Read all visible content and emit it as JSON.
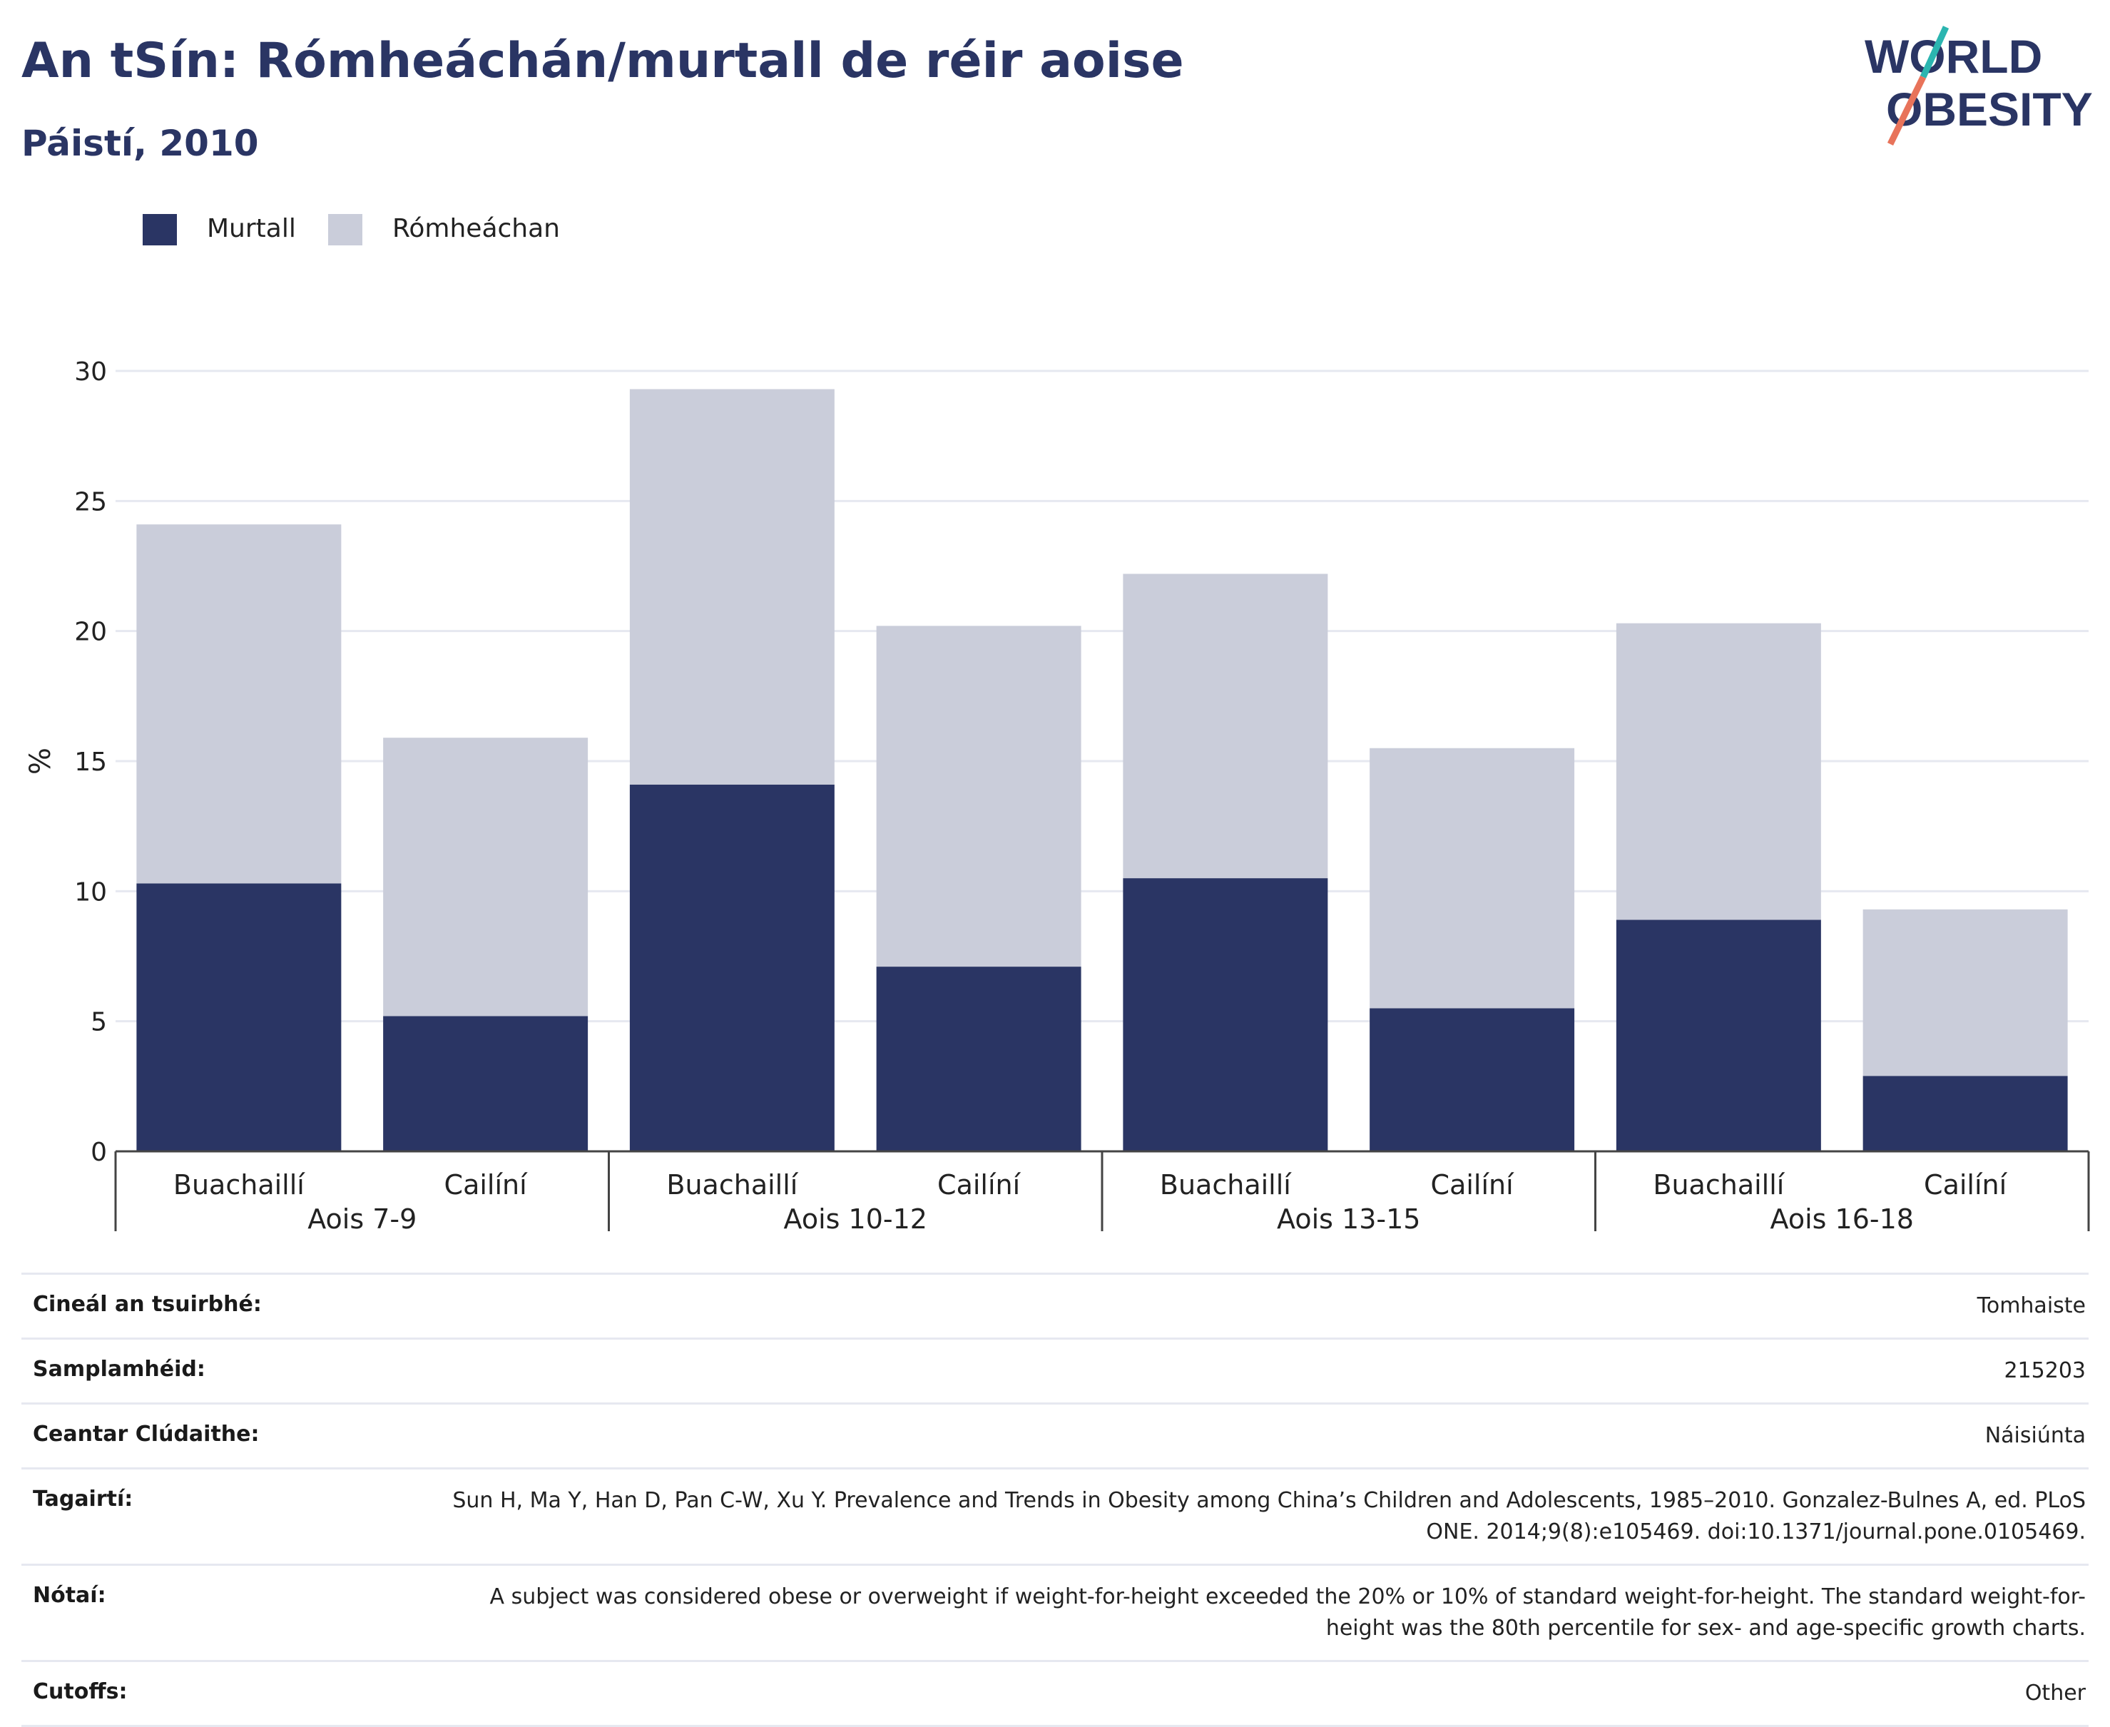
{
  "title": "An tSín: Rómheáchán/murtall de réir aoise",
  "subtitle": "Páistí, 2010",
  "logo": {
    "line1": "WORLD",
    "line2": "OBESITY"
  },
  "colors": {
    "obese": "#2a3564",
    "overweight": "#cacdda",
    "title": "#2a3564",
    "logo_slash_teal": "#2bb5b0",
    "logo_slash_red": "#e8735a"
  },
  "legend": [
    {
      "label": "Murtall",
      "color": "#2a3564"
    },
    {
      "label": "Rómheáchan",
      "color": "#cacdda"
    }
  ],
  "chart_data": {
    "type": "bar",
    "stacked": true,
    "title": "An tSín: Rómheáchán/murtall de réir aoise",
    "subtitle": "Páistí, 2010",
    "ylabel": "%",
    "ylim": [
      0,
      30
    ],
    "yticks": [
      0,
      5,
      10,
      15,
      20,
      25,
      30
    ],
    "grid": true,
    "legend_position": "top-left",
    "groups": [
      "Aois 7-9",
      "Aois 10-12",
      "Aois 13-15",
      "Aois 16-18"
    ],
    "categories": [
      "Buachaillí",
      "Cailíní",
      "Buachaillí",
      "Cailíní",
      "Buachaillí",
      "Cailíní",
      "Buachaillí",
      "Cailíní"
    ],
    "series": [
      {
        "name": "Murtall",
        "values": [
          10.3,
          5.2,
          14.1,
          7.1,
          10.5,
          5.5,
          8.9,
          2.9
        ]
      },
      {
        "name": "Rómheáchan",
        "values": [
          13.8,
          10.7,
          15.2,
          13.1,
          11.7,
          10.0,
          11.4,
          6.4
        ]
      }
    ]
  },
  "meta": [
    {
      "label": "Cineál an tsuirbhé:",
      "value": "Tomhaiste"
    },
    {
      "label": "Samplamhéid:",
      "value": "215203"
    },
    {
      "label": "Ceantar Clúdaithe:",
      "value": "Náisiúnta"
    },
    {
      "label": "Tagairtí:",
      "value": "Sun H, Ma Y, Han D, Pan C-W, Xu Y. Prevalence and Trends in Obesity among China’s Children and Adolescents, 1985–2010. Gonzalez-Bulnes A, ed. PLoS ONE. 2014;9(8):e105469. doi:10.1371/journal.pone.0105469."
    },
    {
      "label": "Nótaí:",
      "value": "A subject was considered obese or overweight if weight-for-height exceeded the 20% or 10% of standard weight-for-height. The standard weight-for-height was the 80th percentile for sex- and age-specific growth charts."
    },
    {
      "label": "Cutoffs:",
      "value": "Other"
    }
  ]
}
